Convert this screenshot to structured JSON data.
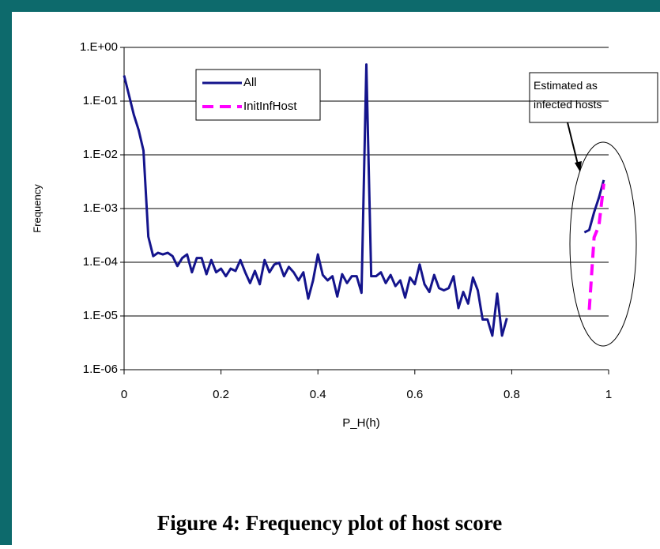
{
  "chart_data": {
    "type": "line",
    "log_y": true,
    "grid": true,
    "legend": "upper left",
    "caption": "Figure 4: Frequency plot of host score",
    "xlabel": "P_H(h)",
    "ylabel": "Frequency",
    "annotation": "Estimated as infected hosts",
    "xlim": [
      0,
      1
    ],
    "xticks": [
      0,
      0.2,
      0.4,
      0.6,
      0.8,
      1
    ],
    "ylim": [
      1e-06,
      1
    ],
    "yticks": [
      {
        "value": 1e-06,
        "label": "1.E-06"
      },
      {
        "value": 1e-05,
        "label": "1.E-05"
      },
      {
        "value": 0.0001,
        "label": "1.E-04"
      },
      {
        "value": 0.001,
        "label": "1.E-03"
      },
      {
        "value": 0.01,
        "label": "1.E-02"
      },
      {
        "value": 0.1,
        "label": "1.E-01"
      },
      {
        "value": 1,
        "label": "1.E+00"
      }
    ],
    "series": [
      {
        "name": "All",
        "color": "#14148c",
        "dash": false,
        "x": [
          0,
          0.01,
          0.02,
          0.03,
          0.04,
          0.05,
          0.06,
          0.07,
          0.08,
          0.09,
          0.1,
          0.11,
          0.12,
          0.13,
          0.14,
          0.15,
          0.16,
          0.17,
          0.18,
          0.19,
          0.2,
          0.21,
          0.22,
          0.23,
          0.24,
          0.25,
          0.26,
          0.27,
          0.28,
          0.29,
          0.3,
          0.31,
          0.32,
          0.33,
          0.34,
          0.35,
          0.36,
          0.37,
          0.38,
          0.39,
          0.4,
          0.41,
          0.42,
          0.43,
          0.44,
          0.45,
          0.46,
          0.47,
          0.48,
          0.49,
          0.5,
          0.51,
          0.52,
          0.53,
          0.54,
          0.55,
          0.56,
          0.57,
          0.58,
          0.59,
          0.6,
          0.61,
          0.62,
          0.63,
          0.64,
          0.65,
          0.66,
          0.67,
          0.68,
          0.69,
          0.7,
          0.71,
          0.72,
          0.73,
          0.74,
          0.75,
          0.76,
          0.77,
          0.78,
          0.79,
          0.8,
          0.95,
          0.96,
          0.97,
          0.98,
          0.99
        ],
        "values": [
          0.3,
          0.13,
          0.056,
          0.029,
          0.012,
          0.0003,
          0.00013,
          0.00015,
          0.00014,
          0.00015,
          0.00013,
          8.5e-05,
          0.00012,
          0.00014,
          6.5e-05,
          0.00012,
          0.00012,
          6e-05,
          0.00011,
          6.5e-05,
          7.6e-05,
          5.5e-05,
          7.6e-05,
          6.9e-05,
          0.00011,
          6.5e-05,
          4.1e-05,
          6.9e-05,
          3.9e-05,
          0.00011,
          6.5e-05,
          9.1e-05,
          9.8e-05,
          5.5e-05,
          8.2e-05,
          6.5e-05,
          4.6e-05,
          6.5e-05,
          2.1e-05,
          4.6e-05,
          0.00014,
          5.8e-05,
          4.6e-05,
          5.5e-05,
          2.3e-05,
          6e-05,
          4.1e-05,
          5.5e-05,
          5.5e-05,
          2.7e-05,
          0.48,
          5.5e-05,
          5.5e-05,
          6.5e-05,
          4.1e-05,
          5.8e-05,
          3.6e-05,
          4.6e-05,
          2.2e-05,
          5.2e-05,
          3.9e-05,
          9.1e-05,
          3.9e-05,
          2.8e-05,
          5.8e-05,
          3.3e-05,
          3e-05,
          3.3e-05,
          5.5e-05,
          1.4e-05,
          2.8e-05,
          1.7e-05,
          5.2e-05,
          3e-05,
          8.6e-06,
          8.6e-06,
          4.3e-06,
          2.6e-05,
          4.3e-06,
          9.1e-06,
          null,
          0.00036,
          0.0004,
          0.00085,
          0.0016,
          0.0034
        ]
      },
      {
        "name": "InitInfHost",
        "color": "#ff00ff",
        "dash": true,
        "x": [
          0.96,
          0.97,
          0.98,
          0.99
        ],
        "values": [
          1.3e-05,
          0.00029,
          0.00048,
          0.0029
        ]
      }
    ]
  }
}
